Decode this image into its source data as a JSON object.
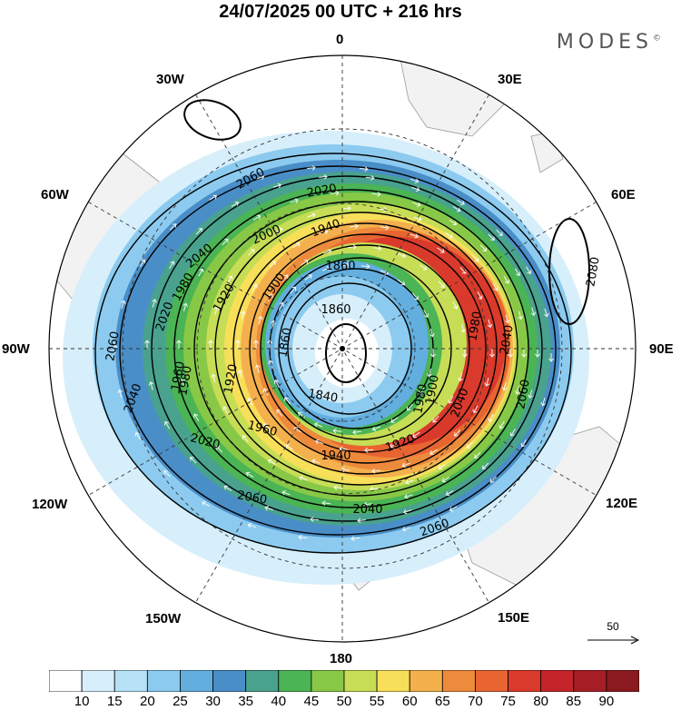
{
  "title": "24/07/2025  00 UTC  + 216 hrs",
  "logo": "MODES",
  "logo_mark": "©",
  "longitudes": {
    "n0": "0",
    "n30e": "30E",
    "n60e": "60E",
    "n90e": "90E",
    "n120e": "120E",
    "n150e": "150E",
    "n180": "180",
    "n150w": "150W",
    "n120w": "120W",
    "n90w": "90W",
    "n60w": "60W",
    "n30w": "30W"
  },
  "reference_vector": {
    "label": "50",
    "magnitude": 50
  },
  "contour_labels": [
    "2060",
    "2020",
    "1940",
    "2000",
    "2040",
    "1860",
    "1900",
    "2020",
    "1980",
    "1860",
    "2060",
    "1920",
    "1860",
    "1840",
    "2040",
    "1980",
    "1980",
    "2040",
    "1960",
    "1920",
    "1920",
    "1960",
    "2060",
    "2020",
    "2040",
    "1940",
    "2060",
    "2040",
    "2060",
    "2080",
    "1980",
    "1900"
  ],
  "colorbar": {
    "ticks": [
      "10",
      "15",
      "20",
      "25",
      "30",
      "35",
      "40",
      "45",
      "50",
      "55",
      "60",
      "65",
      "70",
      "75",
      "80",
      "85",
      "90"
    ],
    "colors": [
      "#ffffff",
      "#d7effb",
      "#b6e1f7",
      "#8ccbef",
      "#62aedf",
      "#4a8ec8",
      "#49a28e",
      "#4bb454",
      "#88c847",
      "#c6dd55",
      "#f7df5a",
      "#f4b04c",
      "#ee8a3c",
      "#e86532",
      "#da3a2b",
      "#c5242a",
      "#a51e25",
      "#8a1a1f"
    ]
  }
}
